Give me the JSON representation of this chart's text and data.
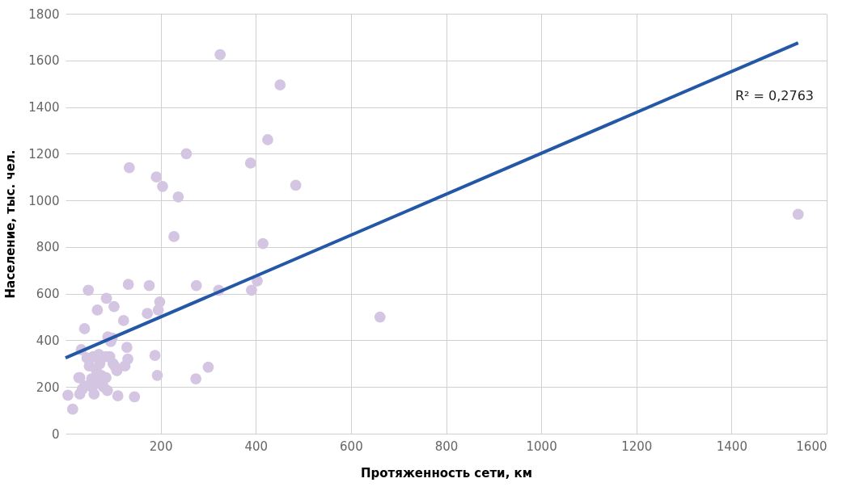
{
  "chart_data": {
    "type": "scatter",
    "xlabel": "Протяженность сети, км",
    "ylabel": "Население, тыс. чел.",
    "xlim": [
      0,
      1600
    ],
    "xticks": [
      200,
      400,
      600,
      800,
      1000,
      1200,
      1400,
      1600
    ],
    "ylim": [
      0,
      1800
    ],
    "yticks": [
      0,
      200,
      400,
      600,
      800,
      1000,
      1200,
      1400,
      1600,
      1800
    ],
    "grid": true,
    "annotations": [
      "R² = 0,2763"
    ],
    "series": [
      {
        "color": "#d4c5e2",
        "marker": "circle",
        "x": [
          5,
          15,
          30,
          33,
          40,
          48,
          67,
          86,
          102,
          122,
          134,
          132,
          176,
          172,
          191,
          204,
          237,
          254,
          228,
          198,
          195,
          275,
          322,
          325,
          389,
          391,
          403,
          415,
          425,
          451,
          484,
          661,
          1540,
          188,
          193,
          274,
          300,
          145,
          110,
          60,
          55,
          50,
          58,
          45,
          40,
          30,
          35,
          28,
          55,
          65,
          70,
          72,
          75,
          80,
          85,
          88,
          89,
          93,
          95,
          98,
          85,
          100,
          105,
          108,
          125,
          129,
          131,
          70
        ],
        "values": [
          165,
          105,
          240,
          360,
          450,
          615,
          530,
          580,
          545,
          485,
          1140,
          640,
          635,
          515,
          1100,
          1060,
          1015,
          1200,
          845,
          565,
          530,
          635,
          615,
          1625,
          1160,
          615,
          655,
          815,
          1260,
          1495,
          1065,
          500,
          940,
          335,
          250,
          235,
          285,
          158,
          162,
          170,
          235,
          290,
          330,
          325,
          205,
          170,
          190,
          240,
          200,
          270,
          340,
          300,
          250,
          200,
          240,
          185,
          415,
          330,
          395,
          410,
          330,
          300,
          285,
          270,
          290,
          370,
          320,
          215
        ]
      },
      {
        "type": "line",
        "color": "#2457a6",
        "x": [
          0,
          1540
        ],
        "values": [
          325,
          1675
        ]
      }
    ]
  }
}
